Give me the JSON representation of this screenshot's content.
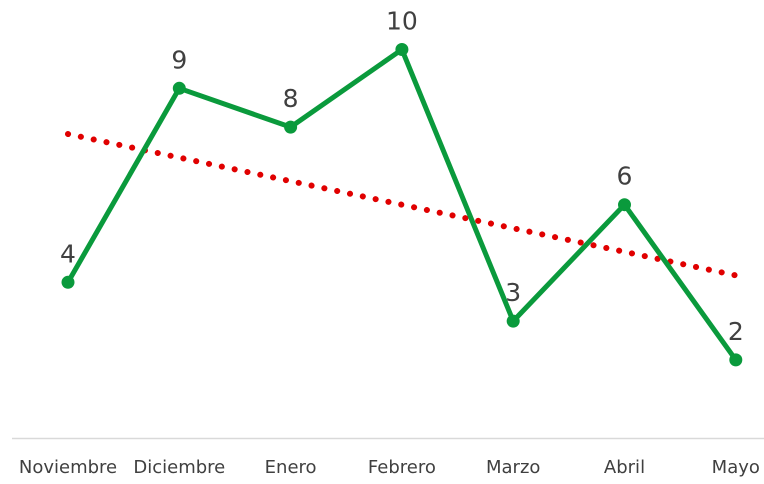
{
  "chart_data": {
    "type": "line",
    "categories": [
      "Noviembre",
      "Diciembre",
      "Enero",
      "Febrero",
      "Marzo",
      "Abril",
      "Mayo"
    ],
    "series": [
      {
        "values": [
          4,
          9,
          8,
          10,
          3,
          6,
          2
        ],
        "color": "#0a9a3c",
        "marker": "circle",
        "data_labels": true
      }
    ],
    "trendline": {
      "type": "linear",
      "color": "#e00000",
      "style": "dotted"
    },
    "title": "",
    "xlabel": "",
    "ylabel": "",
    "ylim": [
      0,
      11
    ],
    "grid": false,
    "legend": false,
    "axis_color": "#d9d9d9"
  }
}
